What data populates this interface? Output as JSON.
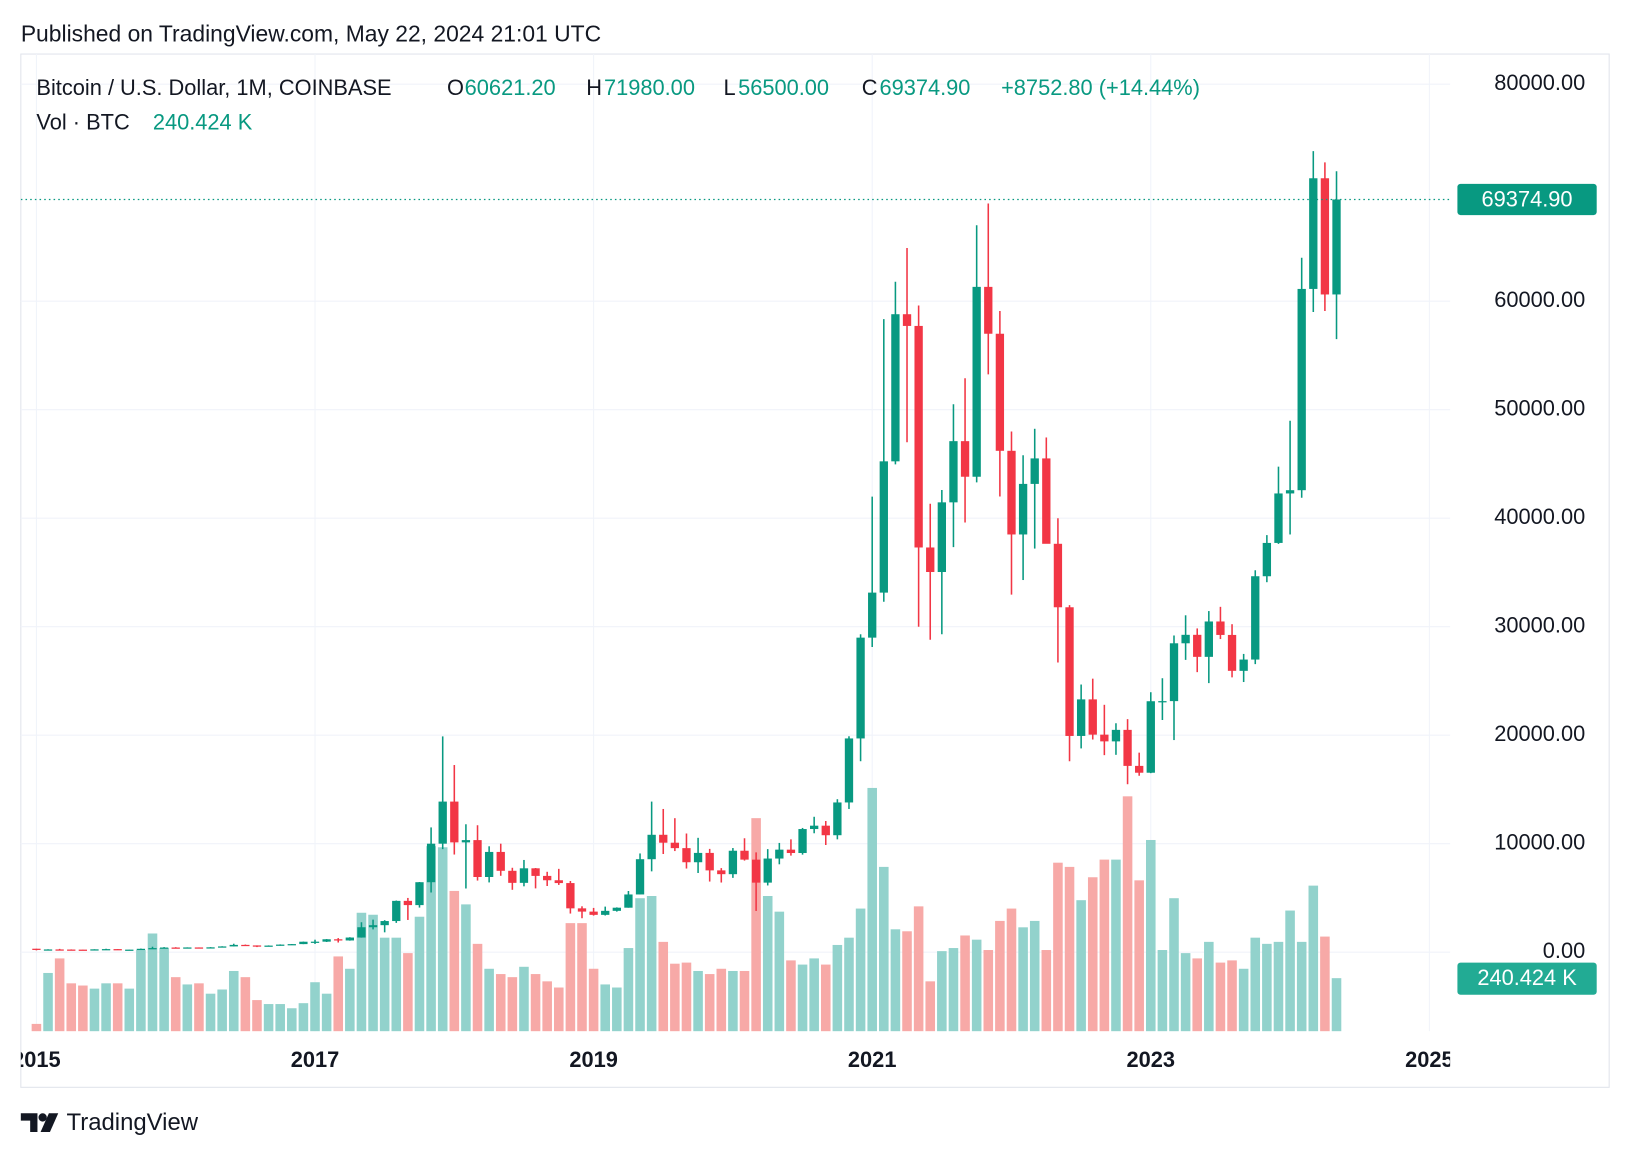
{
  "published": "Published on TradingView.com, May 22, 2024 21:01 UTC",
  "brand": "TradingView",
  "legend": {
    "title": "Bitcoin / U.S. Dollar, 1M, COINBASE",
    "o": "O",
    "open": "60621.20",
    "h": "H",
    "high": "71980.00",
    "l": "L",
    "low": "56500.00",
    "c": "C",
    "close": "69374.90",
    "change": "+8752.80 (+14.44%)",
    "vol": "Vol · BTC",
    "vol_value": "240.424 K"
  },
  "chart_data": {
    "type": "candlestick",
    "up_color": "#089981",
    "down_color": "#f23645",
    "up_volume_color": "#92d2cc",
    "down_volume_color": "#f7a9a7",
    "grid": true,
    "ylim": [
      -7281,
      82778
    ],
    "yticks": [
      {
        "value": 0,
        "label": "0.00"
      },
      {
        "value": 10000,
        "label": "10000.00"
      },
      {
        "value": 20000,
        "label": "20000.00"
      },
      {
        "value": 30000,
        "label": "30000.00"
      },
      {
        "value": 40000,
        "label": "40000.00"
      },
      {
        "value": 50000,
        "label": "50000.00"
      },
      {
        "value": 60000,
        "label": "60000.00"
      },
      {
        "value": 80000,
        "label": "80000.00"
      }
    ],
    "xlim": [
      2014.888,
      2025.149
    ],
    "xticks": [
      2015,
      2017,
      2019,
      2021,
      2023,
      2025
    ],
    "last_price_label": "69374.90",
    "last_volume_label": "240.424 K",
    "x": [
      "2015-01",
      "2015-02",
      "2015-03",
      "2015-04",
      "2015-05",
      "2015-06",
      "2015-07",
      "2015-08",
      "2015-09",
      "2015-10",
      "2015-11",
      "2015-12",
      "2016-01",
      "2016-02",
      "2016-03",
      "2016-04",
      "2016-05",
      "2016-06",
      "2016-07",
      "2016-08",
      "2016-09",
      "2016-10",
      "2016-11",
      "2016-12",
      "2017-01",
      "2017-02",
      "2017-03",
      "2017-04",
      "2017-05",
      "2017-06",
      "2017-07",
      "2017-08",
      "2017-09",
      "2017-10",
      "2017-11",
      "2017-12",
      "2018-01",
      "2018-02",
      "2018-03",
      "2018-04",
      "2018-05",
      "2018-06",
      "2018-07",
      "2018-08",
      "2018-09",
      "2018-10",
      "2018-11",
      "2018-12",
      "2019-01",
      "2019-02",
      "2019-03",
      "2019-04",
      "2019-05",
      "2019-06",
      "2019-07",
      "2019-08",
      "2019-09",
      "2019-10",
      "2019-11",
      "2019-12",
      "2020-01",
      "2020-02",
      "2020-03",
      "2020-04",
      "2020-05",
      "2020-06",
      "2020-07",
      "2020-08",
      "2020-09",
      "2020-10",
      "2020-11",
      "2020-12",
      "2021-01",
      "2021-02",
      "2021-03",
      "2021-04",
      "2021-05",
      "2021-06",
      "2021-07",
      "2021-08",
      "2021-09",
      "2021-10",
      "2021-11",
      "2021-12",
      "2022-01",
      "2022-02",
      "2022-03",
      "2022-04",
      "2022-05",
      "2022-06",
      "2022-07",
      "2022-08",
      "2022-09",
      "2022-10",
      "2022-11",
      "2022-12",
      "2023-01",
      "2023-02",
      "2023-03",
      "2023-04",
      "2023-05",
      "2023-06",
      "2023-07",
      "2023-08",
      "2023-09",
      "2023-10",
      "2023-11",
      "2023-12",
      "2024-01",
      "2024-02",
      "2024-03",
      "2024-04",
      "2024-05"
    ],
    "open": [
      320,
      217,
      254,
      244,
      236,
      230,
      263,
      284,
      230,
      236,
      312,
      378,
      430,
      368,
      437,
      416,
      448,
      531,
      673,
      624,
      575,
      609,
      700,
      745,
      964,
      970,
      1190,
      1080,
      1350,
      2300,
      2490,
      2870,
      4730,
      4340,
      6450,
      10000,
      13880,
      10120,
      10330,
      6930,
      9240,
      7500,
      6390,
      7730,
      7030,
      6630,
      6370,
      4040,
      3740,
      3440,
      3810,
      4100,
      5320,
      8570,
      10820,
      10090,
      9590,
      8290,
      9150,
      7540,
      7190,
      9350,
      8530,
      6410,
      8630,
      9450,
      9140,
      11350,
      11660,
      10780,
      13800,
      19700,
      28990,
      33140,
      45240,
      58800,
      57720,
      37300,
      35040,
      41460,
      47100,
      43820,
      61320,
      57000,
      46210,
      38500,
      43160,
      45510,
      37640,
      31790,
      19930,
      23300,
      20050,
      19430,
      20490,
      17170,
      16540,
      23130,
      23140,
      28470,
      29250,
      27220,
      30480,
      29240,
      25930,
      26970,
      34650,
      37720,
      42280,
      42580,
      61130,
      71330,
      60621.2
    ],
    "high": [
      320,
      265,
      300,
      260,
      247,
      268,
      318,
      285,
      245,
      336,
      504,
      470,
      462,
      445,
      438,
      466,
      548,
      780,
      704,
      626,
      628,
      720,
      755,
      975,
      1150,
      1210,
      1300,
      1380,
      2760,
      3000,
      2950,
      4760,
      5000,
      6470,
      11500,
      19890,
      17250,
      11790,
      11700,
      9760,
      10000,
      7780,
      8500,
      7760,
      7410,
      7680,
      6560,
      4230,
      4080,
      4200,
      4130,
      5640,
      9100,
      13880,
      13200,
      12350,
      10940,
      10540,
      9520,
      7750,
      9600,
      10500,
      9200,
      9500,
      10070,
      10400,
      11450,
      12480,
      12090,
      14100,
      19900,
      29300,
      41990,
      58350,
      61790,
      64900,
      59600,
      41330,
      42600,
      50500,
      52900,
      67000,
      69000,
      59100,
      47990,
      45800,
      48240,
      47440,
      40000,
      31990,
      24670,
      25210,
      22800,
      21100,
      21480,
      18390,
      23960,
      25250,
      29190,
      31050,
      29840,
      31440,
      31830,
      30230,
      27490,
      35200,
      38440,
      44750,
      48980,
      64000,
      73830,
      72800,
      71980
    ],
    "low": [
      170,
      212,
      235,
      214,
      228,
      221,
      253,
      199,
      225,
      236,
      303,
      350,
      350,
      365,
      405,
      415,
      440,
      525,
      604,
      470,
      568,
      600,
      680,
      741,
      760,
      940,
      890,
      1060,
      1340,
      2100,
      1830,
      2700,
      2970,
      4110,
      5500,
      9500,
      9000,
      5870,
      6600,
      6430,
      7040,
      5750,
      6070,
      5880,
      6100,
      6200,
      3560,
      3130,
      3370,
      3380,
      3740,
      4100,
      5320,
      7450,
      9050,
      9320,
      7710,
      7300,
      6510,
      6420,
      6850,
      8440,
      3800,
      6150,
      8100,
      8900,
      8990,
      10960,
      9880,
      10400,
      13200,
      17600,
      28130,
      32300,
      44960,
      47000,
      30000,
      28800,
      29300,
      37330,
      39600,
      43300,
      53250,
      42000,
      32950,
      34300,
      37200,
      37700,
      26700,
      17600,
      18780,
      19600,
      18160,
      18190,
      15480,
      16260,
      16500,
      21400,
      19550,
      26940,
      25810,
      24800,
      28860,
      25330,
      24900,
      26550,
      34100,
      37630,
      38500,
      41880,
      59000,
      59100,
      56500
    ],
    "close": [
      217,
      254,
      244,
      236,
      230,
      263,
      284,
      230,
      236,
      312,
      378,
      430,
      368,
      437,
      416,
      448,
      531,
      673,
      624,
      575,
      609,
      700,
      745,
      964,
      970,
      1190,
      1080,
      1350,
      2300,
      2490,
      2870,
      4730,
      4340,
      6450,
      10000,
      13880,
      10120,
      10330,
      6930,
      9240,
      7500,
      6390,
      7730,
      7030,
      6630,
      6370,
      4040,
      3740,
      3440,
      3810,
      4100,
      5320,
      8570,
      10820,
      10090,
      9590,
      8290,
      9150,
      7540,
      7190,
      9350,
      8530,
      6410,
      8630,
      9450,
      9140,
      11350,
      11660,
      10780,
      13800,
      19700,
      28990,
      33140,
      45240,
      58800,
      57720,
      37300,
      35040,
      41460,
      47100,
      43820,
      61320,
      57000,
      46210,
      38500,
      43160,
      45510,
      37640,
      31790,
      19930,
      23300,
      20050,
      19430,
      20490,
      17170,
      16540,
      23130,
      23140,
      28470,
      29250,
      27220,
      30480,
      29240,
      25930,
      26970,
      34650,
      37720,
      42280,
      42580,
      61130,
      71330,
      60620,
      69374.9
    ],
    "volume": [
      33,
      264,
      330,
      217,
      207,
      193,
      217,
      217,
      193,
      368,
      443,
      377,
      245,
      212,
      217,
      170,
      189,
      273,
      245,
      141,
      123,
      123,
      104,
      127,
      222,
      170,
      339,
      283,
      537,
      528,
      424,
      424,
      354,
      519,
      839,
      834,
      636,
      575,
      396,
      283,
      259,
      245,
      292,
      259,
      226,
      198,
      490,
      490,
      283,
      212,
      198,
      377,
      603,
      613,
      405,
      306,
      311,
      273,
      259,
      283,
      273,
      273,
      966,
      613,
      542,
      321,
      302,
      330,
      302,
      391,
      424,
      556,
      1103,
      745,
      462,
      453,
      566,
      226,
      363,
      377,
      434,
      415,
      368,
      500,
      556,
      471,
      500,
      368,
      764,
      745,
      594,
      698,
      778,
      778,
      1065,
      684,
      867,
      368,
      603,
      354,
      330,
      405,
      311,
      321,
      283,
      424,
      396,
      405,
      547,
      405,
      660,
      429,
      240.424
    ]
  }
}
